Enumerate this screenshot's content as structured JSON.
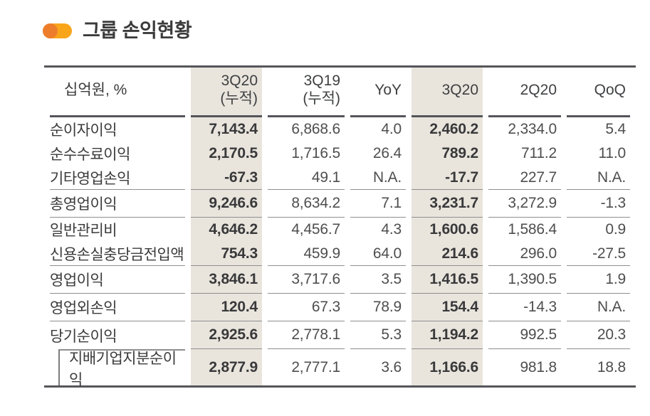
{
  "title": {
    "text": "그룹 손익현황"
  },
  "colors": {
    "icon_pill": "#f9a51a",
    "icon_knob": "#ed7d2b",
    "highlight_bg": "#e9e5dd",
    "border_dark": "#55565a",
    "border_light": "#8e8e8e",
    "text_dark": "#3b3b3c"
  },
  "table": {
    "unit_header": "십억원, %",
    "columns": [
      {
        "id": "3q20-cum",
        "label": "3Q20\n(누적)",
        "highlight": true
      },
      {
        "id": "3q19-cum",
        "label": "3Q19\n(누적)",
        "highlight": false
      },
      {
        "id": "yoy",
        "label": "YoY",
        "highlight": false
      },
      {
        "id": "3q20",
        "label": "3Q20",
        "highlight": true
      },
      {
        "id": "2q20",
        "label": "2Q20",
        "highlight": false
      },
      {
        "id": "qoq",
        "label": "QoQ",
        "highlight": false
      }
    ],
    "rows": [
      {
        "label": "순이자이익",
        "values": [
          "7,143.4",
          "6,868.6",
          "4.0",
          "2,460.2",
          "2,334.0",
          "5.4"
        ],
        "section_end": false,
        "indent": false
      },
      {
        "label": "순수수료이익",
        "values": [
          "2,170.5",
          "1,716.5",
          "26.4",
          "789.2",
          "711.2",
          "11.0"
        ],
        "section_end": false,
        "indent": false
      },
      {
        "label": "기타영업손익",
        "values": [
          "-67.3",
          "49.1",
          "N.A.",
          "-17.7",
          "227.7",
          "N.A."
        ],
        "section_end": true,
        "indent": false
      },
      {
        "label": "총영업이익",
        "values": [
          "9,246.6",
          "8,634.2",
          "7.1",
          "3,231.7",
          "3,272.9",
          "-1.3"
        ],
        "section_end": true,
        "indent": false
      },
      {
        "label": "일반관리비",
        "values": [
          "4,646.2",
          "4,456.7",
          "4.3",
          "1,600.6",
          "1,586.4",
          "0.9"
        ],
        "section_end": false,
        "indent": false
      },
      {
        "label": "신용손실충당금전입액",
        "values": [
          "754.3",
          "459.9",
          "64.0",
          "214.6",
          "296.0",
          "-27.5"
        ],
        "section_end": true,
        "indent": false
      },
      {
        "label": "영업이익",
        "values": [
          "3,846.1",
          "3,717.6",
          "3.5",
          "1,416.5",
          "1,390.5",
          "1.9"
        ],
        "section_end": true,
        "indent": false
      },
      {
        "label": "영업외손익",
        "values": [
          "120.4",
          "67.3",
          "78.9",
          "154.4",
          "-14.3",
          "N.A."
        ],
        "section_end": true,
        "indent": false
      },
      {
        "label": "당기순이익",
        "values": [
          "2,925.6",
          "2,778.1",
          "5.3",
          "1,194.2",
          "992.5",
          "20.3"
        ],
        "section_end": true,
        "indent": false
      },
      {
        "label": "지배기업지분순이익",
        "values": [
          "2,877.9",
          "2,777.1",
          "3.6",
          "1,166.6",
          "981.8",
          "18.8"
        ],
        "section_end": false,
        "indent": true
      }
    ]
  }
}
